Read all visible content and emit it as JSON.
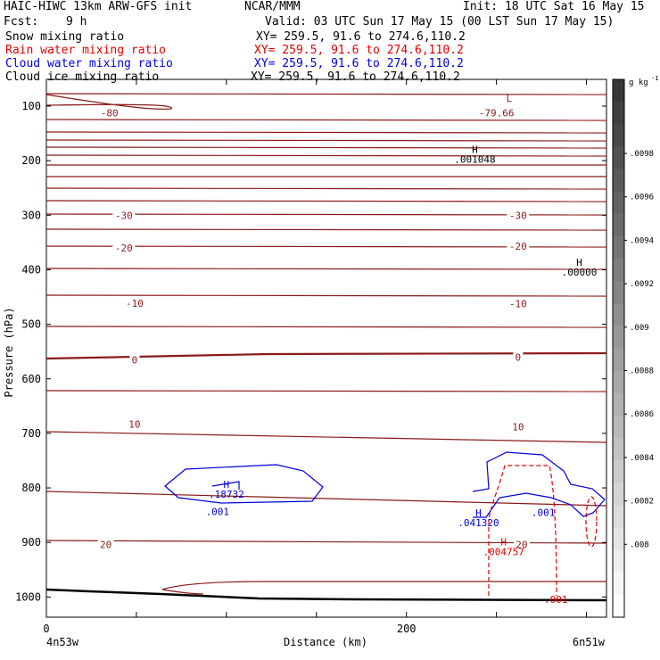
{
  "header": {
    "model": "HAIC-HIWC 13km ARW-GFS init",
    "org": "NCAR/MMM",
    "init": "Init: 18 UTC Sat 16 May 15",
    "fcst_label": "Fcst:",
    "fcst_value": "9 h",
    "valid": "Valid: 03 UTC Sun 17 May 15 (00 LST Sun 17 May 15)"
  },
  "fields": [
    {
      "name": "Snow mixing ratio",
      "xy": "XY= 259.5, 91.6 to 274.6,110.2",
      "color": "#000000"
    },
    {
      "name": "Rain water mixing ratio",
      "xy": "XY= 259.5, 91.6 to 274.6,110.2",
      "color": "#e00000"
    },
    {
      "name": "Cloud water mixing ratio",
      "xy": "XY= 259.5, 91.6 to 274.6,110.2",
      "color": "#0000dd"
    },
    {
      "name": "Cloud ice mixing ratio",
      "xy": "XY= 259.5, 91.6 to 274.6,110.2",
      "color": "#000000"
    }
  ],
  "chart_data": {
    "type": "contour",
    "ylabel": "Pressure (hPa)",
    "xlabel": "Distance (km)",
    "y_ticks": [
      100,
      200,
      300,
      400,
      500,
      600,
      700,
      800,
      900,
      1000
    ],
    "x_ticks": [
      0,
      200
    ],
    "x_end_labels": {
      "left": "4n53w",
      "right": "6n51w"
    },
    "colorbar": {
      "unit": "g kg",
      "unit_exp": "-1",
      "ticks": [
        ".0098",
        ".0096",
        ".0094",
        ".0092",
        ".009",
        ".0088",
        ".0086",
        ".0084",
        ".0082",
        ".008"
      ]
    },
    "temperature_labels": [
      {
        "text": "-80",
        "p": 112,
        "d": 35
      },
      {
        "text": "-79.66",
        "p": 112,
        "d": 250
      },
      {
        "text": "-30",
        "p": 300,
        "d": 43
      },
      {
        "text": "-30",
        "p": 300,
        "d": 262
      },
      {
        "text": "-20",
        "p": 360,
        "d": 43
      },
      {
        "text": "-20",
        "p": 357,
        "d": 262
      },
      {
        "text": "-10",
        "p": 461,
        "d": 49
      },
      {
        "text": "-10",
        "p": 462,
        "d": 262
      },
      {
        "text": "0",
        "p": 565,
        "d": 49
      },
      {
        "text": "0",
        "p": 560,
        "d": 262
      },
      {
        "text": "10",
        "p": 683,
        "d": 49
      },
      {
        "text": "10",
        "p": 688,
        "d": 262
      },
      {
        "text": "20",
        "p": 904,
        "d": 33
      },
      {
        "text": "20",
        "p": 904,
        "d": 264
      }
    ],
    "extrema": [
      {
        "mark": "L",
        "value": "",
        "p": 92,
        "d": 257,
        "color": "#8b1a1a"
      },
      {
        "mark": "H",
        "value": ".001048",
        "p": 186,
        "d": 238,
        "color": "#000000"
      },
      {
        "mark": "H",
        "value": ".00000",
        "p": 393,
        "d": 296,
        "color": "#000000"
      },
      {
        "mark": "H",
        "value": ".18732",
        "p": 800,
        "d": 100,
        "color": "#0000dd"
      },
      {
        "mark": "H",
        "value": ".041320",
        "p": 852,
        "d": 240,
        "color": "#0000dd"
      },
      {
        "mark": "H",
        "value": ".004757",
        "p": 905,
        "d": 254,
        "color": "#e00000"
      }
    ],
    "other_labels": [
      {
        "text": ".001",
        "p": 843,
        "d": 95,
        "color": "#0000dd"
      },
      {
        "text": ".001",
        "p": 845,
        "d": 276,
        "color": "#0000dd"
      },
      {
        "text": ".001",
        "p": 1004,
        "d": 283,
        "color": "#e00000"
      }
    ]
  }
}
